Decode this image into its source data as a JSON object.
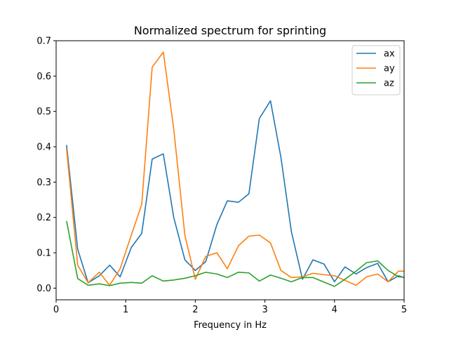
{
  "chart_data": {
    "type": "line",
    "title": "Normalized spectrum for sprinting",
    "xlabel": "Frequency in Hz",
    "ylabel": "",
    "xlim": [
      0,
      5
    ],
    "ylim": [
      -0.033,
      0.7
    ],
    "xticks": [
      0,
      1,
      2,
      3,
      4,
      5
    ],
    "yticks": [
      0.0,
      0.1,
      0.2,
      0.3,
      0.4,
      0.5,
      0.6,
      0.7
    ],
    "xtick_labels": [
      "0",
      "1",
      "2",
      "3",
      "4",
      "5"
    ],
    "ytick_labels": [
      "0.0",
      "0.1",
      "0.2",
      "0.3",
      "0.4",
      "0.5",
      "0.6",
      "0.7"
    ],
    "grid": false,
    "legend_position": "top-right",
    "x": [
      0.15,
      0.31,
      0.46,
      0.62,
      0.77,
      0.92,
      1.08,
      1.23,
      1.38,
      1.54,
      1.69,
      1.85,
      2.0,
      2.15,
      2.31,
      2.46,
      2.62,
      2.77,
      2.92,
      3.08,
      3.23,
      3.38,
      3.54,
      3.69,
      3.85,
      4.0,
      4.15,
      4.31,
      4.46,
      4.62,
      4.77,
      4.92,
      5.08
    ],
    "series": [
      {
        "name": "ax",
        "color": "#1f77b4",
        "values": [
          0.405,
          0.11,
          0.015,
          0.035,
          0.065,
          0.032,
          0.115,
          0.155,
          0.365,
          0.38,
          0.2,
          0.08,
          0.05,
          0.075,
          0.18,
          0.247,
          0.243,
          0.267,
          0.48,
          0.53,
          0.37,
          0.16,
          0.025,
          0.08,
          0.068,
          0.018,
          0.06,
          0.04,
          0.058,
          0.07,
          0.018,
          0.035,
          0.025
        ]
      },
      {
        "name": "ay",
        "color": "#ff7f0e",
        "values": [
          0.395,
          0.065,
          0.015,
          0.045,
          0.008,
          0.055,
          0.15,
          0.237,
          0.625,
          0.668,
          0.45,
          0.15,
          0.025,
          0.09,
          0.1,
          0.055,
          0.12,
          0.147,
          0.15,
          0.128,
          0.05,
          0.03,
          0.032,
          0.042,
          0.038,
          0.035,
          0.022,
          0.008,
          0.032,
          0.04,
          0.018,
          0.048,
          0.048
        ]
      },
      {
        "name": "az",
        "color": "#2ca02c",
        "values": [
          0.19,
          0.027,
          0.008,
          0.012,
          0.007,
          0.014,
          0.016,
          0.014,
          0.035,
          0.02,
          0.023,
          0.028,
          0.035,
          0.045,
          0.04,
          0.03,
          0.045,
          0.043,
          0.02,
          0.037,
          0.028,
          0.018,
          0.03,
          0.03,
          0.017,
          0.005,
          0.025,
          0.048,
          0.072,
          0.077,
          0.05,
          0.032,
          0.03
        ]
      }
    ]
  }
}
